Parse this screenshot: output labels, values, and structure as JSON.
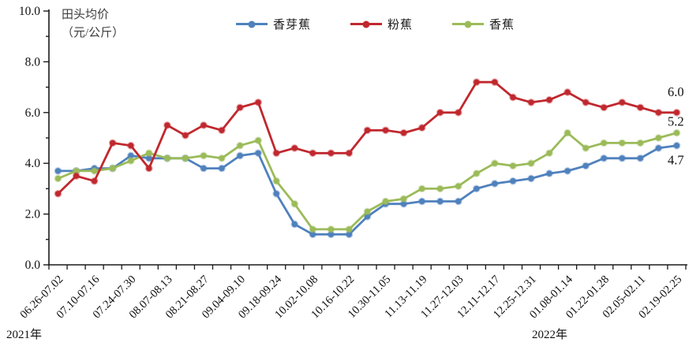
{
  "axis_title": {
    "line1": "田头均价",
    "line2": "（元/公斤）"
  },
  "year_labels": {
    "left": "2021年",
    "right": "2022年"
  },
  "legend": {
    "items": [
      {
        "label": "香芽蕉",
        "color": "#4F81BD"
      },
      {
        "label": "粉蕉",
        "color": "#C0282E"
      },
      {
        "label": "香蕉",
        "color": "#9BBB59"
      }
    ]
  },
  "chart_data": {
    "type": "line",
    "title": "",
    "ylabel": "田头均价（元/公斤）",
    "ylim": [
      0,
      10
    ],
    "y_tick_step_labeled": 2,
    "y_tick_labels": [
      "0.0",
      "2.0",
      "4.0",
      "6.0",
      "8.0",
      "10.0"
    ],
    "grid": false,
    "legend_position": "top",
    "n_points": 35,
    "x_labels_every": 2,
    "x_tick_labels": [
      "06.26-07.02",
      "07.10-07.16",
      "07.24-07.30",
      "08.07-08.13",
      "08.21-08.27",
      "09.04-09.10",
      "09.18-09.24",
      "10.02-10.08",
      "10.16-10.22",
      "10.30-11.05",
      "11.13-11.19",
      "11.27-12.03",
      "12.11-12.17",
      "12.25-12.31",
      "01.08-01.14",
      "01.22-01.28",
      "02.05-02.11",
      "02.19-02.25"
    ],
    "series": [
      {
        "name": "香芽蕉",
        "color": "#4F81BD",
        "end_label": "4.7",
        "values": [
          3.7,
          3.7,
          3.8,
          3.8,
          4.3,
          4.2,
          4.2,
          4.2,
          3.8,
          3.8,
          4.3,
          4.4,
          2.8,
          1.6,
          1.2,
          1.2,
          1.2,
          1.9,
          2.4,
          2.4,
          2.5,
          2.5,
          2.5,
          3.0,
          3.2,
          3.3,
          3.4,
          3.6,
          3.7,
          3.9,
          4.2,
          4.2,
          4.2,
          4.6,
          4.7
        ]
      },
      {
        "name": "粉蕉",
        "color": "#C0282E",
        "end_label": "6.0",
        "values": [
          2.8,
          3.5,
          3.3,
          4.8,
          4.7,
          3.8,
          5.5,
          5.1,
          5.5,
          5.3,
          6.2,
          6.4,
          4.4,
          4.6,
          4.4,
          4.4,
          4.4,
          5.3,
          5.3,
          5.2,
          5.4,
          6.0,
          6.0,
          7.2,
          7.2,
          6.6,
          6.4,
          6.5,
          6.8,
          6.4,
          6.2,
          6.4,
          6.2,
          6.0,
          6.0
        ]
      },
      {
        "name": "香蕉",
        "color": "#9BBB59",
        "end_label": "5.2",
        "values": [
          3.4,
          3.7,
          3.7,
          3.8,
          4.1,
          4.4,
          4.2,
          4.2,
          4.3,
          4.2,
          4.7,
          4.9,
          3.3,
          2.4,
          1.4,
          1.4,
          1.4,
          2.1,
          2.5,
          2.6,
          3.0,
          3.0,
          3.1,
          3.6,
          4.0,
          3.9,
          4.0,
          4.4,
          5.2,
          4.6,
          4.8,
          4.8,
          4.8,
          5.0,
          5.2
        ]
      }
    ]
  }
}
